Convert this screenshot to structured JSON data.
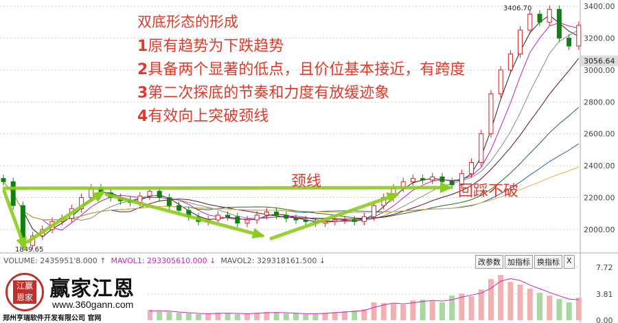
{
  "annotations": {
    "title": "双底形态的形成",
    "points": [
      {
        "num": "1",
        "text": "原有趋势为下跌趋势"
      },
      {
        "num": "2",
        "text": "具备两个显著的低点，且价位基本接近，有跨度"
      },
      {
        "num": "3",
        "text": "第二次探底的节奏和力度有放缓迹象"
      },
      {
        "num": "4",
        "text": "有效向上突破颈线"
      }
    ],
    "neckline_label": "颈线",
    "pullback_label": "回踩不破"
  },
  "volume_header": {
    "volume": "VOLUME: 2435951'8.000 ↑",
    "mavol1": "MAVOL1: 293305610.000 ↓",
    "mavol2": "MAVOL2: 329318161.500 ↓"
  },
  "buttons": [
    "改参数",
    "加指标",
    "换指标",
    "X"
  ],
  "logo": {
    "brand": "赢家江恩",
    "seal": "江赢恩家",
    "url": "www.360gann.com",
    "company": "郑州亨瑞软件开发有限公司 官网"
  },
  "colors": {
    "annotation": "#e03a2a",
    "arrow": "#8ccc1e",
    "up": "#d02020",
    "down": "#108010",
    "mavol1": "#d020c0"
  },
  "chart_data": {
    "type": "candlestick",
    "price_axis": {
      "ticks": [
        2000,
        2200,
        2400,
        2600,
        2800,
        3000,
        3200,
        3400
      ],
      "labels": [
        "2000.00",
        "2200.00",
        "2400.00",
        "2600.00",
        "2800.00",
        "3000.00",
        "3200.00",
        "3400.00"
      ],
      "range": [
        1980,
        3420
      ]
    },
    "current_price": "3056.64",
    "high_label": "3406.70",
    "low_label": "1849.65",
    "closes": [
      2300,
      2150,
      1900,
      1960,
      2000,
      2050,
      2070,
      2130,
      2200,
      2260,
      2230,
      2200,
      2180,
      2170,
      2210,
      2240,
      2200,
      2150,
      2120,
      2080,
      2050,
      2060,
      2090,
      2080,
      2040,
      2060,
      2090,
      2110,
      2090,
      2070,
      2060,
      2050,
      2040,
      2050,
      2060,
      2060,
      2050,
      2080,
      2150,
      2200,
      2260,
      2300,
      2320,
      2310,
      2330,
      2300,
      2280,
      2350,
      2420,
      2600,
      2850,
      3000,
      3100,
      3250,
      3350,
      3300,
      3380,
      3200,
      3150,
      3280
    ],
    "volume_axis": {
      "ticks": [
        0,
        3.81,
        7.72
      ],
      "labels": [
        "0.00",
        "3.81",
        "7.72"
      ]
    },
    "volumes": [
      1.2,
      1.4,
      1.5,
      1.3,
      1.2,
      1.1,
      1.0,
      1.3,
      1.6,
      1.8,
      1.6,
      1.4,
      1.3,
      1.2,
      1.4,
      1.5,
      1.3,
      1.2,
      1.1,
      1.0,
      0.9,
      1.0,
      1.1,
      1.0,
      0.9,
      1.0,
      1.1,
      1.2,
      1.1,
      1.0,
      1.0,
      0.9,
      1.0,
      1.1,
      1.2,
      1.3,
      1.4,
      1.6,
      2.6,
      2.5,
      2.4,
      2.3,
      2.9,
      3.0,
      2.8,
      2.6,
      3.6,
      3.9,
      3.5,
      4.5,
      6.0,
      6.6,
      5.6,
      5.2,
      4.6,
      4.0,
      3.6,
      3.1,
      2.6,
      3.3
    ]
  }
}
